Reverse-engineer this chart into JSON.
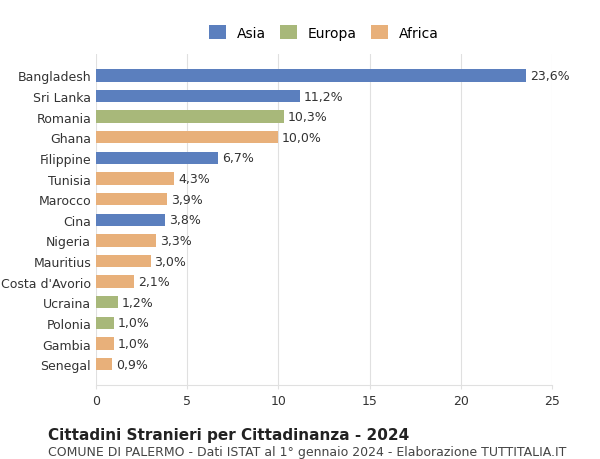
{
  "categories": [
    "Senegal",
    "Gambia",
    "Polonia",
    "Ucraina",
    "Costa d'Avorio",
    "Mauritius",
    "Nigeria",
    "Cina",
    "Marocco",
    "Tunisia",
    "Filippine",
    "Ghana",
    "Romania",
    "Sri Lanka",
    "Bangladesh"
  ],
  "values": [
    0.9,
    1.0,
    1.0,
    1.2,
    2.1,
    3.0,
    3.3,
    3.8,
    3.9,
    4.3,
    6.7,
    10.0,
    10.3,
    11.2,
    23.6
  ],
  "labels": [
    "0,9%",
    "1,0%",
    "1,0%",
    "1,2%",
    "2,1%",
    "3,0%",
    "3,3%",
    "3,8%",
    "3,9%",
    "4,3%",
    "6,7%",
    "10,0%",
    "10,3%",
    "11,2%",
    "23,6%"
  ],
  "continents": [
    "Africa",
    "Africa",
    "Europa",
    "Europa",
    "Africa",
    "Africa",
    "Africa",
    "Asia",
    "Africa",
    "Africa",
    "Asia",
    "Africa",
    "Europa",
    "Asia",
    "Asia"
  ],
  "colors": {
    "Asia": "#5b7fbe",
    "Europa": "#a8b87a",
    "Africa": "#e8b07a"
  },
  "legend_labels": [
    "Asia",
    "Europa",
    "Africa"
  ],
  "title": "Cittadini Stranieri per Cittadinanza - 2024",
  "subtitle": "COMUNE DI PALERMO - Dati ISTAT al 1° gennaio 2024 - Elaborazione TUTTITALIA.IT",
  "xlim": [
    0,
    25
  ],
  "xticks": [
    0,
    5,
    10,
    15,
    20,
    25
  ],
  "background_color": "#ffffff",
  "grid_color": "#e0e0e0",
  "bar_height": 0.6,
  "label_fontsize": 9,
  "title_fontsize": 11,
  "subtitle_fontsize": 9,
  "tick_fontsize": 9
}
